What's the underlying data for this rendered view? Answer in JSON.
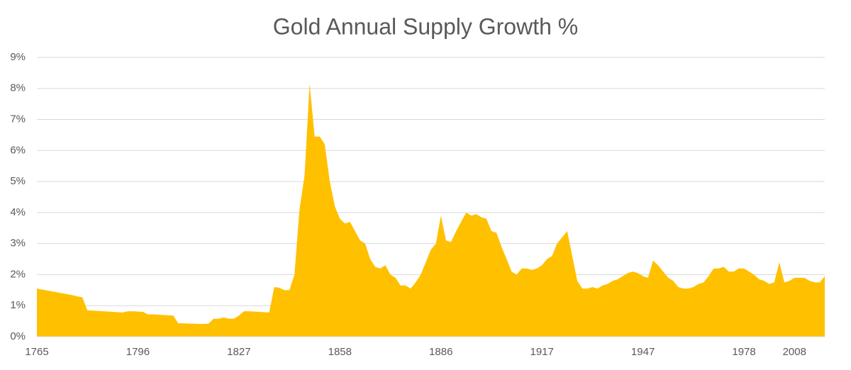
{
  "chart_data": {
    "type": "area",
    "title": "Gold Annual Supply Growth %",
    "categories": [
      "1765",
      null,
      null,
      null,
      null,
      null,
      null,
      null,
      null,
      null,
      null,
      null,
      null,
      null,
      null,
      null,
      null,
      null,
      null,
      null,
      "1796",
      null,
      null,
      null,
      null,
      null,
      null,
      null,
      null,
      null,
      null,
      null,
      null,
      null,
      null,
      null,
      null,
      null,
      null,
      null,
      "1827",
      null,
      null,
      null,
      null,
      null,
      null,
      null,
      null,
      null,
      null,
      null,
      null,
      null,
      null,
      null,
      null,
      null,
      null,
      null,
      "1858",
      null,
      null,
      null,
      null,
      null,
      null,
      null,
      null,
      null,
      null,
      null,
      null,
      null,
      null,
      null,
      null,
      null,
      null,
      null,
      "1886",
      null,
      null,
      null,
      null,
      null,
      null,
      null,
      null,
      null,
      null,
      null,
      null,
      null,
      null,
      null,
      null,
      null,
      null,
      null,
      "1917",
      null,
      null,
      null,
      null,
      null,
      null,
      null,
      null,
      null,
      null,
      null,
      null,
      null,
      null,
      null,
      null,
      null,
      null,
      null,
      "1947",
      null,
      null,
      null,
      null,
      null,
      null,
      null,
      null,
      null,
      null,
      null,
      null,
      null,
      null,
      null,
      null,
      null,
      null,
      null,
      "1978",
      null,
      null,
      null,
      null,
      null,
      null,
      null,
      null,
      null,
      "2008",
      null,
      null,
      null,
      null,
      null,
      null
    ],
    "values": [
      1.55,
      1.52,
      1.49,
      1.46,
      1.43,
      1.4,
      1.37,
      1.34,
      1.3,
      1.27,
      0.85,
      0.84,
      0.83,
      0.82,
      0.81,
      0.8,
      0.79,
      0.78,
      0.82,
      0.82,
      0.81,
      0.8,
      0.72,
      0.72,
      0.71,
      0.7,
      0.69,
      0.68,
      0.43,
      0.43,
      0.42,
      0.42,
      0.41,
      0.41,
      0.42,
      0.58,
      0.58,
      0.62,
      0.58,
      0.58,
      0.68,
      0.82,
      0.82,
      0.81,
      0.8,
      0.79,
      0.78,
      1.6,
      1.58,
      1.5,
      1.5,
      2.0,
      4.1,
      5.2,
      8.15,
      6.45,
      6.45,
      6.2,
      5.0,
      4.2,
      3.8,
      3.65,
      3.7,
      3.4,
      3.1,
      3.0,
      2.5,
      2.25,
      2.2,
      2.3,
      2.0,
      1.9,
      1.65,
      1.65,
      1.55,
      1.75,
      2.0,
      2.4,
      2.8,
      3.0,
      3.9,
      3.1,
      3.05,
      3.4,
      3.7,
      4.0,
      3.9,
      3.95,
      3.85,
      3.8,
      3.4,
      3.35,
      2.9,
      2.5,
      2.1,
      2.0,
      2.2,
      2.2,
      2.15,
      2.2,
      2.3,
      2.5,
      2.6,
      3.0,
      3.2,
      3.4,
      2.6,
      1.8,
      1.55,
      1.55,
      1.6,
      1.55,
      1.65,
      1.7,
      1.8,
      1.85,
      1.95,
      2.05,
      2.1,
      2.05,
      1.95,
      1.9,
      2.45,
      2.3,
      2.1,
      1.9,
      1.8,
      1.6,
      1.55,
      1.55,
      1.6,
      1.7,
      1.75,
      1.95,
      2.2,
      2.2,
      2.25,
      2.1,
      2.1,
      2.2,
      2.2,
      2.1,
      2.0,
      1.85,
      1.8,
      1.7,
      1.75,
      2.4,
      1.75,
      1.8,
      1.9,
      1.9,
      1.9,
      1.8,
      1.75,
      1.75,
      1.95
    ],
    "color": "#ffc000",
    "ylim": [
      0,
      9
    ],
    "yticks": [
      {
        "value": 0,
        "label": "0%"
      },
      {
        "value": 1,
        "label": "1%"
      },
      {
        "value": 2,
        "label": "2%"
      },
      {
        "value": 3,
        "label": "3%"
      },
      {
        "value": 4,
        "label": "4%"
      },
      {
        "value": 5,
        "label": "5%"
      },
      {
        "value": 6,
        "label": "6%"
      },
      {
        "value": 7,
        "label": "7%"
      },
      {
        "value": 8,
        "label": "8%"
      },
      {
        "value": 9,
        "label": "9%"
      }
    ],
    "grid": true
  }
}
